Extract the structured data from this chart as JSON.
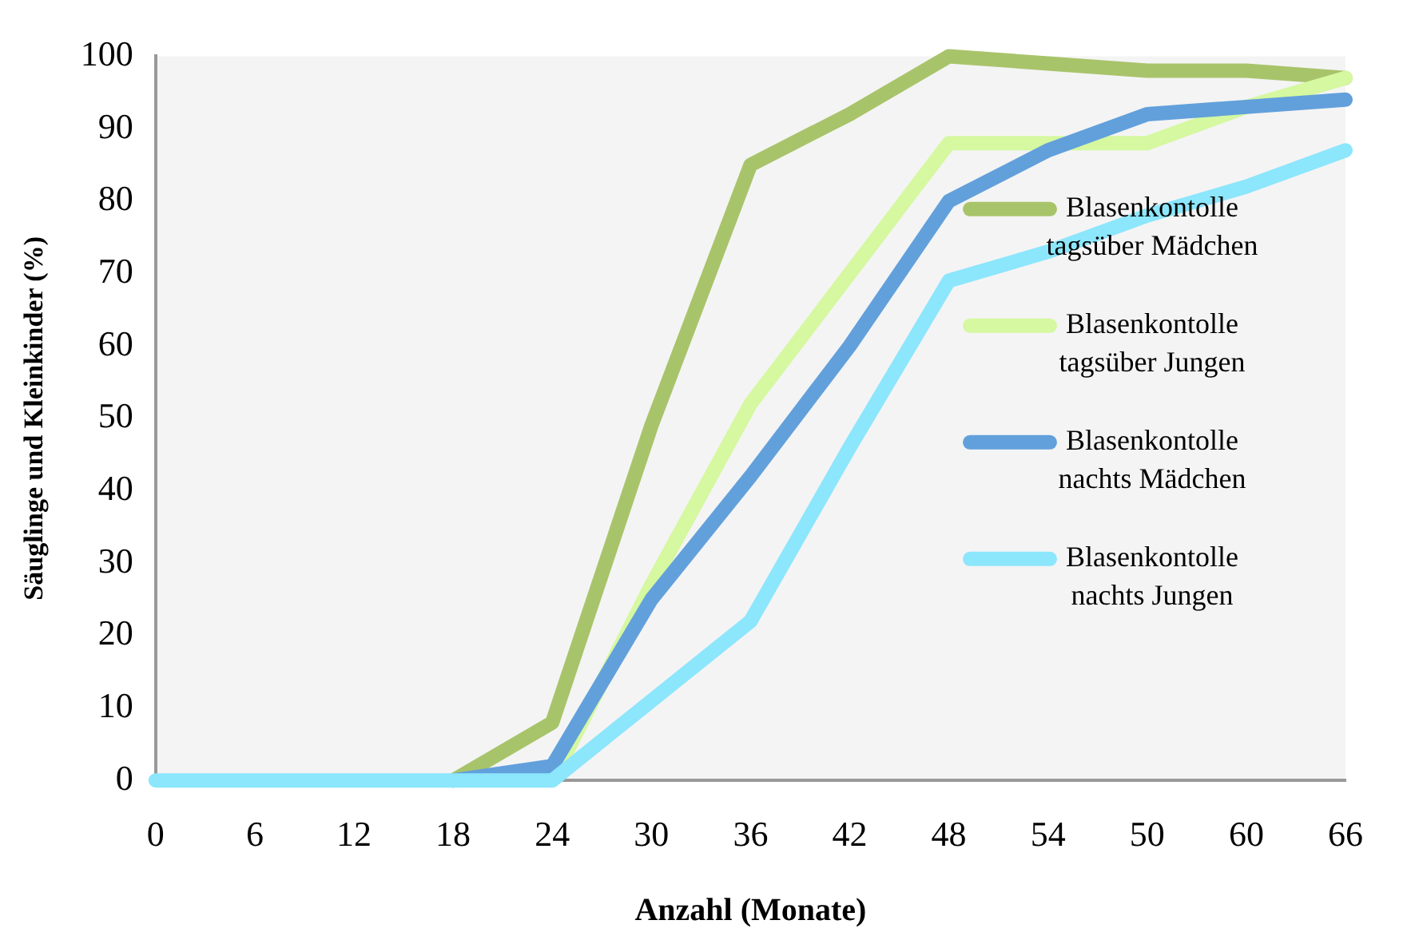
{
  "chart_data": {
    "type": "line",
    "xlabel": "Anzahl (Monate)",
    "ylabel": "Säuglinge und Kleinkinder (%)",
    "categories": [
      "0",
      "6",
      "12",
      "18",
      "24",
      "30",
      "36",
      "42",
      "48",
      "54",
      "50",
      "60",
      "66"
    ],
    "ylim": [
      0,
      100
    ],
    "yticks": [
      0,
      10,
      20,
      30,
      40,
      50,
      60,
      70,
      80,
      90,
      100
    ],
    "grid": false,
    "legend": "right",
    "marker": "none",
    "line_style": "solid",
    "series": [
      {
        "name": "Blasenkontolle tagsüber Mädchen",
        "color": "#a8c46a",
        "values": [
          null,
          null,
          null,
          0,
          8,
          49,
          85,
          92,
          100,
          99,
          98,
          98,
          97
        ]
      },
      {
        "name": "Blasenkontolle tagsüber Jungen",
        "color": "#d5f8a0",
        "values": [
          null,
          null,
          null,
          null,
          0,
          27,
          52,
          70,
          88,
          88,
          88,
          93,
          97
        ]
      },
      {
        "name": "Blasenkontolle nachts Mädchen",
        "color": "#62a0dc",
        "values": [
          null,
          null,
          null,
          0,
          2,
          25,
          42,
          60,
          80,
          87,
          92,
          93,
          94
        ]
      },
      {
        "name": "Blasenkontolle nachts Jungen",
        "color": "#8ce6fc",
        "values": [
          0,
          0,
          0,
          0,
          0,
          11,
          22,
          46,
          69,
          73,
          78,
          82,
          87
        ]
      }
    ]
  }
}
